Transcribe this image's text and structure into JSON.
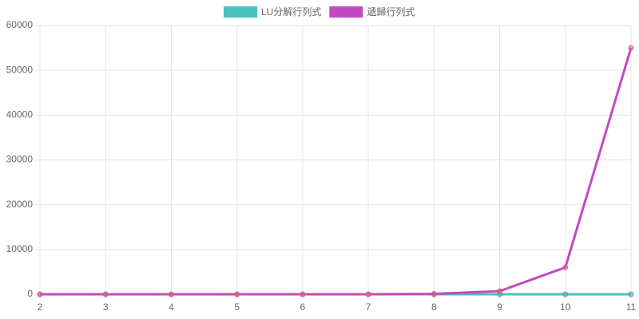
{
  "chart_data": {
    "type": "line",
    "categories": [
      "2",
      "3",
      "4",
      "5",
      "6",
      "7",
      "8",
      "9",
      "10",
      "11"
    ],
    "series": [
      {
        "name": "LU分解行列式",
        "color": "#4bc0c0",
        "point_color": "#5a9fb5",
        "values": [
          0,
          0,
          0,
          0,
          0,
          0,
          0,
          0,
          0,
          0
        ]
      },
      {
        "name": "遞歸行列式",
        "color": "#c04bc0",
        "point_color": "#e0607a",
        "values": [
          0,
          0,
          0,
          0,
          0,
          10,
          100,
          700,
          6000,
          55000
        ]
      }
    ],
    "ylim": [
      0,
      60000
    ],
    "yticks": [
      0,
      10000,
      20000,
      30000,
      40000,
      50000,
      60000
    ],
    "grid": true,
    "legend": "top"
  }
}
